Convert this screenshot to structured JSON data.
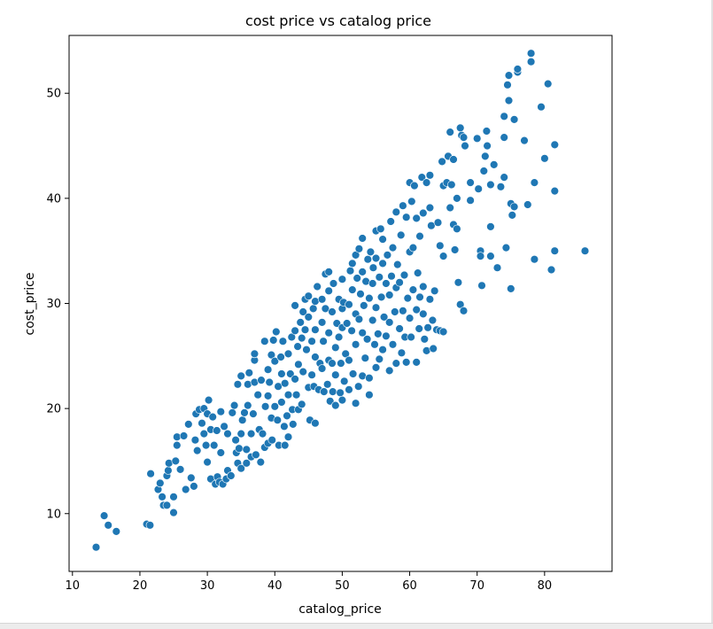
{
  "chart_data": {
    "type": "scatter",
    "title": "cost price vs catalog price",
    "xlabel": "catalog_price",
    "ylabel": "cost_price",
    "xlim": [
      9.5,
      90
    ],
    "ylim": [
      4.5,
      55.5
    ],
    "xticks": [
      10,
      20,
      30,
      40,
      50,
      60,
      70,
      80
    ],
    "yticks": [
      10,
      20,
      30,
      40,
      50
    ],
    "grid": false,
    "marker_color": "#1f77b4",
    "points": [
      [
        13.5,
        6.8
      ],
      [
        14.7,
        9.8
      ],
      [
        15.3,
        8.9
      ],
      [
        16.5,
        8.3
      ],
      [
        21,
        9
      ],
      [
        21.5,
        8.9
      ],
      [
        21.6,
        13.8
      ],
      [
        22.7,
        12.3
      ],
      [
        23,
        12.9
      ],
      [
        23.3,
        11.6
      ],
      [
        23.5,
        10.8
      ],
      [
        24,
        10.8
      ],
      [
        24,
        13.6
      ],
      [
        24.2,
        14.1
      ],
      [
        24.3,
        14.8
      ],
      [
        25,
        10.1
      ],
      [
        25,
        11.6
      ],
      [
        25.3,
        15
      ],
      [
        25.5,
        16.5
      ],
      [
        25.5,
        17.3
      ],
      [
        26,
        14.2
      ],
      [
        26.5,
        17.4
      ],
      [
        26.8,
        12.3
      ],
      [
        27.2,
        18.5
      ],
      [
        27.6,
        13.4
      ],
      [
        28,
        12.6
      ],
      [
        28.2,
        17
      ],
      [
        28.3,
        19.5
      ],
      [
        28.5,
        16
      ],
      [
        28.8,
        19.9
      ],
      [
        29.2,
        18.6
      ],
      [
        29.5,
        20
      ],
      [
        29.5,
        17.6
      ],
      [
        29.8,
        16.5
      ],
      [
        30,
        14.9
      ],
      [
        30,
        19.5
      ],
      [
        30.2,
        20.8
      ],
      [
        30.5,
        13.3
      ],
      [
        30.5,
        18
      ],
      [
        30.8,
        19.2
      ],
      [
        31,
        16.5
      ],
      [
        31.2,
        12.8
      ],
      [
        31.4,
        17.9
      ],
      [
        31.5,
        13.5
      ],
      [
        31.8,
        13
      ],
      [
        32,
        19.7
      ],
      [
        32,
        15.8
      ],
      [
        32.3,
        12.8
      ],
      [
        32.5,
        18.3
      ],
      [
        32.8,
        13.3
      ],
      [
        33,
        17.6
      ],
      [
        33,
        14.1
      ],
      [
        33.5,
        13.6
      ],
      [
        33.7,
        19.6
      ],
      [
        34,
        20.3
      ],
      [
        34.2,
        17
      ],
      [
        34.3,
        15.8
      ],
      [
        34.5,
        14.8
      ],
      [
        34.5,
        22.3
      ],
      [
        34.7,
        16.2
      ],
      [
        35,
        14.3
      ],
      [
        35,
        17.6
      ],
      [
        35,
        23.1
      ],
      [
        35.2,
        18.9
      ],
      [
        35.5,
        19.6
      ],
      [
        35.8,
        16.1
      ],
      [
        35.8,
        14.8
      ],
      [
        36,
        22.3
      ],
      [
        36,
        20.3
      ],
      [
        36.2,
        23.4
      ],
      [
        36.5,
        15.4
      ],
      [
        36.5,
        17.6
      ],
      [
        36.8,
        19.5
      ],
      [
        37,
        24.6
      ],
      [
        37,
        22.5
      ],
      [
        37,
        25.2
      ],
      [
        37.2,
        15.6
      ],
      [
        37.5,
        21.3
      ],
      [
        37.7,
        18
      ],
      [
        37.9,
        14.9
      ],
      [
        38,
        22.7
      ],
      [
        38.2,
        17.6
      ],
      [
        38.5,
        26.4
      ],
      [
        38.5,
        16.3
      ],
      [
        38.6,
        20.2
      ],
      [
        39,
        16.7
      ],
      [
        39,
        23.7
      ],
      [
        39,
        21.2
      ],
      [
        39.2,
        22.5
      ],
      [
        39.5,
        25.1
      ],
      [
        39.5,
        19.1
      ],
      [
        39.6,
        17
      ],
      [
        39.8,
        26.5
      ],
      [
        40,
        24.5
      ],
      [
        40,
        20.2
      ],
      [
        40.2,
        27.3
      ],
      [
        40.4,
        18.9
      ],
      [
        40.5,
        22.1
      ],
      [
        40.6,
        16.5
      ],
      [
        40.9,
        24.9
      ],
      [
        41,
        20.6
      ],
      [
        41,
        23.3
      ],
      [
        41.2,
        26.4
      ],
      [
        41.4,
        18.3
      ],
      [
        41.5,
        22.4
      ],
      [
        41.5,
        16.5
      ],
      [
        41.8,
        19.3
      ],
      [
        42,
        25.2
      ],
      [
        42,
        21.3
      ],
      [
        42,
        17.3
      ],
      [
        42.3,
        23.3
      ],
      [
        42.5,
        26.8
      ],
      [
        42.6,
        19.9
      ],
      [
        42.7,
        18.5
      ],
      [
        43,
        22.8
      ],
      [
        43,
        27.4
      ],
      [
        43,
        29.8
      ],
      [
        43.2,
        21.3
      ],
      [
        43.4,
        25.9
      ],
      [
        43.5,
        19.9
      ],
      [
        43.5,
        24.2
      ],
      [
        43.8,
        28.2
      ],
      [
        44,
        26.7
      ],
      [
        44,
        20.4
      ],
      [
        44.2,
        29.2
      ],
      [
        44.2,
        23.5
      ],
      [
        44.5,
        30.4
      ],
      [
        44.5,
        27.5
      ],
      [
        44.7,
        25.6
      ],
      [
        45,
        30.7
      ],
      [
        45,
        22
      ],
      [
        45,
        28.7
      ],
      [
        45.2,
        18.9
      ],
      [
        45.5,
        23.2
      ],
      [
        45.5,
        26.4
      ],
      [
        45.7,
        29.5
      ],
      [
        45.8,
        22.1
      ],
      [
        46,
        30.2
      ],
      [
        46,
        27.5
      ],
      [
        46,
        24.9
      ],
      [
        46,
        18.6
      ],
      [
        46.3,
        31.6
      ],
      [
        46.5,
        21.8
      ],
      [
        46.7,
        24.3
      ],
      [
        47,
        28.2
      ],
      [
        47,
        30.4
      ],
      [
        47,
        23.8
      ],
      [
        47.2,
        26.4
      ],
      [
        47.3,
        21.6
      ],
      [
        47.5,
        32.8
      ],
      [
        47.5,
        29.5
      ],
      [
        47.8,
        22.3
      ],
      [
        48,
        24.6
      ],
      [
        48,
        31.2
      ],
      [
        48,
        33
      ],
      [
        48,
        27.2
      ],
      [
        48.2,
        20.7
      ],
      [
        48.5,
        24.3
      ],
      [
        48.5,
        29.2
      ],
      [
        48.6,
        21.6
      ],
      [
        48.7,
        31.9
      ],
      [
        49,
        25.8
      ],
      [
        49,
        23.2
      ],
      [
        49,
        20.3
      ],
      [
        49.2,
        28.1
      ],
      [
        49.5,
        30.4
      ],
      [
        49.5,
        26.8
      ],
      [
        49.7,
        21.5
      ],
      [
        49.8,
        24.3
      ],
      [
        50,
        27.7
      ],
      [
        50,
        29.5
      ],
      [
        50,
        32.3
      ],
      [
        50,
        20.8
      ],
      [
        50.2,
        30.1
      ],
      [
        50.3,
        22.6
      ],
      [
        50.5,
        25.2
      ],
      [
        50.7,
        28.1
      ],
      [
        51,
        24.6
      ],
      [
        51,
        29.9
      ],
      [
        51,
        21.8
      ],
      [
        51.2,
        33.1
      ],
      [
        51.4,
        27.4
      ],
      [
        51.5,
        31.3
      ],
      [
        51.5,
        33.8
      ],
      [
        51.6,
        23.3
      ],
      [
        52,
        29
      ],
      [
        52,
        20.5
      ],
      [
        52,
        26.1
      ],
      [
        52,
        34.6
      ],
      [
        52.2,
        32.4
      ],
      [
        52.4,
        22.1
      ],
      [
        52.5,
        28.5
      ],
      [
        52.5,
        35.2
      ],
      [
        52.7,
        30.9
      ],
      [
        53,
        23.1
      ],
      [
        53,
        27.2
      ],
      [
        53,
        33
      ],
      [
        53,
        36.2
      ],
      [
        53.2,
        29.8
      ],
      [
        53.4,
        24.8
      ],
      [
        53.5,
        32.1
      ],
      [
        53.7,
        26.6
      ],
      [
        53.8,
        34.2
      ],
      [
        54,
        30.5
      ],
      [
        54,
        22.9
      ],
      [
        54,
        21.3
      ],
      [
        54.2,
        34.9
      ],
      [
        54.5,
        28.4
      ],
      [
        54.5,
        31.9
      ],
      [
        54.6,
        33.4
      ],
      [
        54.8,
        26.1
      ],
      [
        55,
        29.6
      ],
      [
        55,
        23.9
      ],
      [
        55,
        36.9
      ],
      [
        55,
        34.3
      ],
      [
        55.3,
        27.1
      ],
      [
        55.5,
        32.5
      ],
      [
        55.5,
        24.7
      ],
      [
        55.7,
        37.1
      ],
      [
        55.8,
        30.6
      ],
      [
        56,
        25.6
      ],
      [
        56,
        33.8
      ],
      [
        56,
        36.1
      ],
      [
        56.2,
        28.7
      ],
      [
        56.5,
        31.9
      ],
      [
        56.5,
        26.9
      ],
      [
        56.7,
        34.6
      ],
      [
        57,
        28.2
      ],
      [
        57,
        30.8
      ],
      [
        57,
        23.6
      ],
      [
        57.2,
        37.8
      ],
      [
        57.3,
        32.6
      ],
      [
        57.5,
        26.1
      ],
      [
        57.5,
        35.3
      ],
      [
        57.8,
        29.2
      ],
      [
        58,
        31.5
      ],
      [
        58,
        24.3
      ],
      [
        58,
        38.7
      ],
      [
        58.2,
        33.7
      ],
      [
        58.5,
        27.6
      ],
      [
        58.5,
        32
      ],
      [
        58.7,
        36.5
      ],
      [
        58.8,
        25.3
      ],
      [
        59,
        29.3
      ],
      [
        59,
        39.3
      ],
      [
        59.2,
        32.7
      ],
      [
        59.3,
        26.8
      ],
      [
        59.5,
        38.2
      ],
      [
        59.5,
        24.4
      ],
      [
        59.7,
        30.5
      ],
      [
        60,
        34.9
      ],
      [
        60,
        28.6
      ],
      [
        60,
        41.5
      ],
      [
        60.2,
        26.8
      ],
      [
        60.3,
        39.7
      ],
      [
        60.5,
        31.3
      ],
      [
        60.5,
        35.3
      ],
      [
        60.7,
        41.2
      ],
      [
        61,
        29.4
      ],
      [
        61,
        24.4
      ],
      [
        61,
        38.1
      ],
      [
        61.2,
        32.9
      ],
      [
        61.4,
        27.6
      ],
      [
        61.5,
        30.6
      ],
      [
        61.5,
        36.4
      ],
      [
        61.8,
        42
      ],
      [
        62,
        31.6
      ],
      [
        62,
        29
      ],
      [
        62,
        38.6
      ],
      [
        62.2,
        26.6
      ],
      [
        62.5,
        41.5
      ],
      [
        62.5,
        25.5
      ],
      [
        62.7,
        27.7
      ],
      [
        63,
        30.4
      ],
      [
        63,
        42.2
      ],
      [
        63,
        39.1
      ],
      [
        63.2,
        37.4
      ],
      [
        63.4,
        28.4
      ],
      [
        63.5,
        25.7
      ],
      [
        63.7,
        31.2
      ],
      [
        64,
        27.5
      ],
      [
        64.2,
        37.7
      ],
      [
        64.5,
        35.5
      ],
      [
        64.5,
        27.4
      ],
      [
        64.8,
        43.5
      ],
      [
        65,
        34.5
      ],
      [
        65,
        27.3
      ],
      [
        65,
        41.2
      ],
      [
        65.5,
        41.5
      ],
      [
        65.7,
        44
      ],
      [
        66,
        46.3
      ],
      [
        66,
        39.1
      ],
      [
        66.2,
        41.3
      ],
      [
        66.5,
        43.7
      ],
      [
        66.5,
        37.5
      ],
      [
        66.7,
        35.1
      ],
      [
        67,
        40
      ],
      [
        67,
        37.1
      ],
      [
        67.2,
        32
      ],
      [
        67.5,
        29.9
      ],
      [
        67.5,
        46.7
      ],
      [
        67.7,
        46
      ],
      [
        68,
        29.3
      ],
      [
        68,
        45.8
      ],
      [
        68.2,
        45
      ],
      [
        69,
        41.5
      ],
      [
        69,
        39.8
      ],
      [
        70,
        45.7
      ],
      [
        70.2,
        40.9
      ],
      [
        70.5,
        35
      ],
      [
        70.5,
        34.5
      ],
      [
        70.7,
        31.7
      ],
      [
        71,
        42.6
      ],
      [
        71.2,
        44
      ],
      [
        71.4,
        46.4
      ],
      [
        71.5,
        45
      ],
      [
        72,
        37.3
      ],
      [
        72,
        41.3
      ],
      [
        72,
        34.5
      ],
      [
        72.5,
        43.2
      ],
      [
        73,
        33.4
      ],
      [
        73.5,
        41.1
      ],
      [
        74,
        45.8
      ],
      [
        74,
        42
      ],
      [
        74,
        47.8
      ],
      [
        74.3,
        35.3
      ],
      [
        74.5,
        50.8
      ],
      [
        74.7,
        51.7
      ],
      [
        74.7,
        49.3
      ],
      [
        75,
        31.4
      ],
      [
        75,
        39.5
      ],
      [
        75.2,
        38.4
      ],
      [
        75.5,
        47.5
      ],
      [
        75.5,
        39.2
      ],
      [
        76,
        52
      ],
      [
        76,
        52.3
      ],
      [
        77,
        45.5
      ],
      [
        77.5,
        39.4
      ],
      [
        78,
        53
      ],
      [
        78,
        53.8
      ],
      [
        78.5,
        34.2
      ],
      [
        78.5,
        41.5
      ],
      [
        79.5,
        48.7
      ],
      [
        80,
        43.8
      ],
      [
        80.5,
        50.9
      ],
      [
        81,
        33.2
      ],
      [
        81.5,
        40.7
      ],
      [
        81.5,
        35
      ],
      [
        81.5,
        45.1
      ],
      [
        86,
        35
      ]
    ]
  }
}
